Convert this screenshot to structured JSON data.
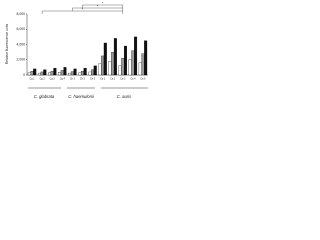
{
  "chart_data": {
    "type": "bar",
    "y_label": "Relative fluorescence units",
    "categories": [
      "Cg 1",
      "Cg 2",
      "Cg 3",
      "Cg 4",
      "Ch 1",
      "Ch 2",
      "Ch 3",
      "Ca 1",
      "Ca 2",
      "Ca 3",
      "Ca 4",
      "Ca 5"
    ],
    "series": [
      {
        "name": "White",
        "color": "#ffffff",
        "values": [
          300,
          250,
          300,
          350,
          250,
          300,
          400,
          1500,
          1800,
          1200,
          2000,
          1600
        ]
      },
      {
        "name": "Gray",
        "color": "#9a9a9a",
        "values": [
          500,
          400,
          500,
          600,
          450,
          500,
          700,
          2500,
          3000,
          2200,
          3200,
          2800
        ]
      },
      {
        "name": "Black",
        "color": "#111111",
        "values": [
          800,
          700,
          900,
          1000,
          800,
          900,
          1200,
          4200,
          4800,
          3800,
          5000,
          4500
        ]
      }
    ],
    "group_labels": [
      "C. glabrata",
      "C. haemulonii",
      "C. auris"
    ],
    "annotations": [
      "*",
      "*",
      "*"
    ],
    "ylim": [
      0,
      8000
    ],
    "yticks": [
      0,
      {
        "value": 2000,
        "label": "2,000"
      },
      {
        "value": 4000,
        "label": "4,000"
      },
      {
        "value": 6000,
        "label": "6,000"
      },
      {
        "value": 8000,
        "label": "8,000"
      }
    ]
  }
}
